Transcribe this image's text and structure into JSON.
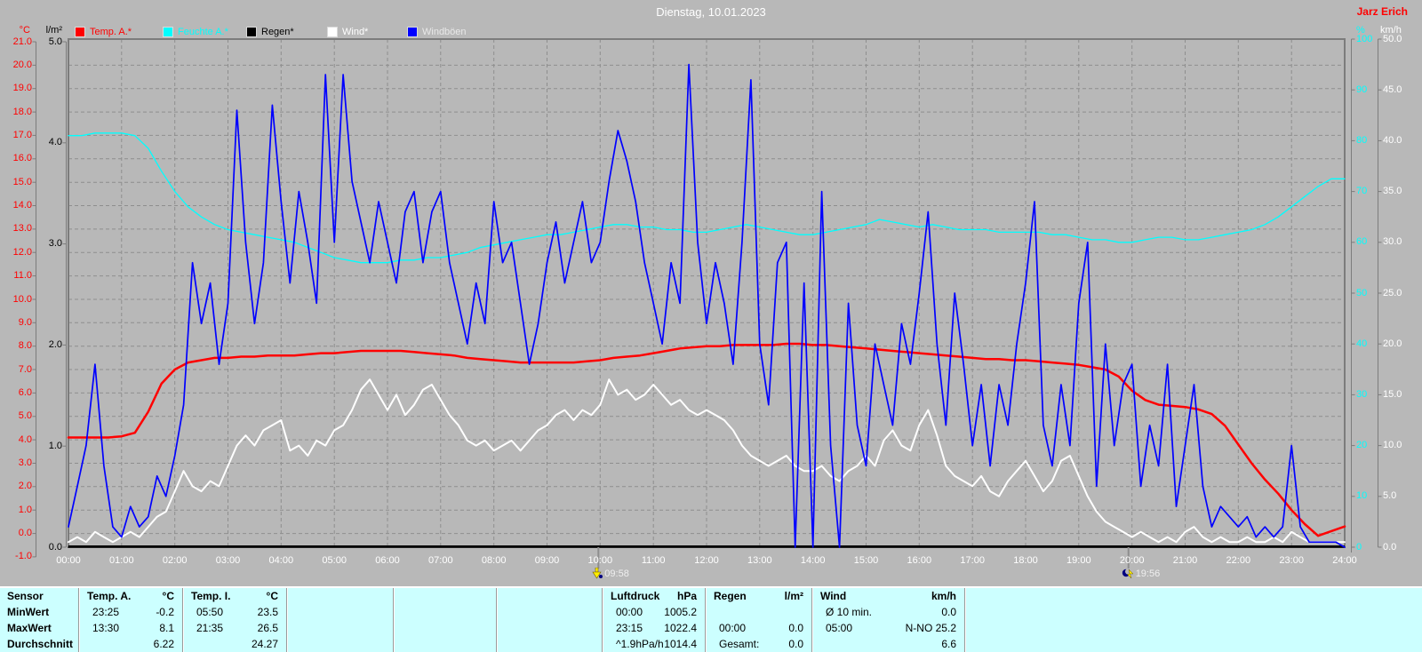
{
  "header": {
    "title": "Dienstag, 10.01.2023",
    "author": "Jarz Erich"
  },
  "legend": {
    "items": [
      {
        "label": "Temp. A.*",
        "color": "#ff0000",
        "text_color": "#ff0000"
      },
      {
        "label": "Feuchte A.*",
        "color": "#00ffff",
        "text_color": "#00ffff"
      },
      {
        "label": "Regen*",
        "color": "#000000",
        "text_color": "#000000"
      },
      {
        "label": "Wind*",
        "color": "#ffffff",
        "text_color": "#ffffff"
      },
      {
        "label": "Windböen",
        "color": "#0000ff",
        "text_color": "#e8e8e8"
      }
    ]
  },
  "axes": {
    "temp": {
      "unit": "°C",
      "color": "#ff0000",
      "max": 21,
      "min": -1,
      "step": 1
    },
    "rain": {
      "unit": "l/m²",
      "color": "#000000",
      "max": 5,
      "min": 0,
      "step": 1
    },
    "humidity": {
      "unit": "%",
      "color": "#00ffff",
      "max": 100,
      "min": 0,
      "step": 10
    },
    "wind": {
      "unit": "km/h",
      "color": "#ffffff",
      "max": 50,
      "min": 0,
      "step": 5
    }
  },
  "x_axis": {
    "first": "00:00",
    "last": "24:00",
    "hours": 24
  },
  "markers": [
    {
      "label": "09:58",
      "hour": 9.9667,
      "type": "sunrise"
    },
    {
      "label": "19:56",
      "hour": 19.9333,
      "type": "sunset"
    }
  ],
  "chart_data": {
    "type": "line",
    "title": "Dienstag, 10.01.2023",
    "x_range_hours": [
      0,
      24
    ],
    "grid": true,
    "series": [
      {
        "name": "Temp. A.",
        "color": "#ff0000",
        "axis": "temp",
        "interval_min": 15,
        "values": [
          4.1,
          4.1,
          4.1,
          4.1,
          4.15,
          4.3,
          5.2,
          6.4,
          7.0,
          7.3,
          7.4,
          7.5,
          7.5,
          7.55,
          7.55,
          7.6,
          7.6,
          7.6,
          7.65,
          7.7,
          7.7,
          7.75,
          7.8,
          7.8,
          7.8,
          7.8,
          7.75,
          7.7,
          7.65,
          7.6,
          7.5,
          7.45,
          7.4,
          7.35,
          7.3,
          7.3,
          7.3,
          7.3,
          7.3,
          7.35,
          7.4,
          7.5,
          7.55,
          7.6,
          7.7,
          7.8,
          7.9,
          7.95,
          8.0,
          8.0,
          8.05,
          8.05,
          8.05,
          8.05,
          8.1,
          8.1,
          8.05,
          8.05,
          8.0,
          7.95,
          7.9,
          7.85,
          7.8,
          7.75,
          7.7,
          7.65,
          7.6,
          7.55,
          7.5,
          7.45,
          7.45,
          7.4,
          7.4,
          7.35,
          7.3,
          7.25,
          7.2,
          7.1,
          7.0,
          6.7,
          6.1,
          5.7,
          5.5,
          5.45,
          5.4,
          5.3,
          5.1,
          4.6,
          3.8,
          3.0,
          2.3,
          1.7,
          1.0,
          0.4,
          -0.1,
          0.1,
          0.3
        ]
      },
      {
        "name": "Feuchte A.",
        "color": "#00ffff",
        "axis": "humidity",
        "interval_min": 15,
        "values": [
          81,
          81,
          81.5,
          81.5,
          81.5,
          81,
          78.5,
          74,
          70,
          67,
          65,
          63.5,
          62.5,
          62,
          61.5,
          61,
          60.5,
          60,
          59,
          58,
          57,
          56.5,
          56,
          56,
          56,
          56.5,
          56.5,
          57,
          57,
          57.5,
          58,
          59,
          59.5,
          60,
          60.5,
          61,
          61.5,
          61.5,
          62,
          62.5,
          63,
          63.5,
          63.5,
          63,
          63,
          62.5,
          62.5,
          62,
          62,
          62.5,
          63,
          63.5,
          63,
          62.5,
          62,
          61.5,
          61.5,
          62,
          62.5,
          63,
          63.5,
          64.5,
          64,
          63.5,
          63,
          63.5,
          63,
          62.5,
          62.5,
          62.5,
          62,
          62,
          62,
          62,
          61.5,
          61.5,
          61,
          60.5,
          60.5,
          60,
          60,
          60.5,
          61,
          61,
          60.5,
          60.5,
          61,
          61.5,
          62,
          62.5,
          63.5,
          65,
          67,
          69,
          71,
          72.5,
          72.5
        ]
      },
      {
        "name": "Regen",
        "color": "#000000",
        "axis": "rain",
        "interval_min": 60,
        "values": [
          0,
          0,
          0,
          0,
          0,
          0,
          0,
          0,
          0,
          0,
          0,
          0,
          0,
          0,
          0,
          0,
          0,
          0,
          0,
          0,
          0,
          0,
          0,
          0,
          0
        ]
      },
      {
        "name": "Wind",
        "color": "#ffffff",
        "axis": "wind",
        "interval_min": 10,
        "values": [
          0.5,
          1,
          0.5,
          1.5,
          1,
          0.5,
          1,
          1.5,
          1,
          2,
          3,
          3.5,
          5.5,
          7.5,
          6,
          5.5,
          6.5,
          6,
          8,
          10,
          11,
          10,
          11.5,
          12,
          12.5,
          9.5,
          10,
          9,
          10.5,
          10,
          11.5,
          12,
          13.5,
          15.5,
          16.5,
          15,
          13.5,
          15,
          13,
          14,
          15.5,
          16,
          14.5,
          13,
          12,
          10.5,
          10,
          10.5,
          9.5,
          10,
          10.5,
          9.5,
          10.5,
          11.5,
          12,
          13,
          13.5,
          12.5,
          13.5,
          13,
          14,
          16.5,
          15,
          15.5,
          14.5,
          15,
          16,
          15,
          14,
          14.5,
          13.5,
          13,
          13.5,
          13,
          12.5,
          11.5,
          10,
          9,
          8.5,
          8,
          8.5,
          9,
          8,
          7.5,
          7.5,
          8,
          7,
          6.5,
          7.5,
          8,
          9,
          8,
          10.5,
          11.5,
          10,
          9.5,
          12,
          13.5,
          11,
          8,
          7,
          6.5,
          6,
          7,
          5.5,
          5,
          6.5,
          7.5,
          8.5,
          7,
          5.5,
          6.5,
          8.5,
          9,
          7,
          5,
          3.5,
          2.5,
          2,
          1.5,
          1,
          1.5,
          1,
          0.5,
          1,
          0.5,
          1.5,
          2,
          1,
          0.5,
          1,
          0.5,
          0.5,
          1,
          0.5,
          0.5,
          1,
          0.5,
          1.5,
          1,
          0.5,
          0.5,
          0.5,
          0.5,
          0.5
        ]
      },
      {
        "name": "Windböen",
        "color": "#0000ff",
        "axis": "wind",
        "interval_min": 10,
        "values": [
          2,
          6,
          10,
          18,
          8,
          2,
          1,
          4,
          2,
          3,
          7,
          5,
          9,
          14,
          28,
          22,
          26,
          18,
          24,
          43,
          30,
          22,
          28,
          43.5,
          34,
          26,
          35,
          30,
          24,
          46.5,
          30,
          46.5,
          36,
          32,
          28,
          34,
          30,
          26,
          33,
          35,
          28,
          33,
          35,
          28,
          24,
          20,
          26,
          22,
          34,
          28,
          30,
          24,
          18,
          22,
          28,
          32,
          26,
          30,
          34,
          28,
          30,
          36,
          41,
          38,
          34,
          28,
          24,
          20,
          28,
          24,
          47.5,
          30,
          22,
          28,
          24,
          18,
          30,
          46,
          20,
          14,
          28,
          30,
          0,
          26,
          0,
          35,
          10,
          0,
          24,
          12,
          8,
          20,
          16,
          12,
          22,
          18,
          25,
          33,
          20,
          12,
          25,
          18,
          10,
          16,
          8,
          16,
          12,
          20,
          26,
          34,
          12,
          8,
          16,
          10,
          24,
          30,
          6,
          20,
          10,
          16,
          18,
          6,
          12,
          8,
          18,
          4,
          10,
          16,
          6,
          2,
          4,
          3,
          2,
          3,
          1,
          2,
          1,
          2,
          10,
          2,
          0.5,
          0.5,
          0.5,
          0.5,
          0
        ]
      }
    ]
  },
  "table": {
    "row_labels": [
      "Sensor",
      "MinWert",
      "MaxWert",
      "Durchschnitt"
    ],
    "columns": [
      {
        "title": "Temp. A.",
        "unit": "°C",
        "rows": [
          [
            "23:25",
            "-0.2"
          ],
          [
            "13:30",
            "8.1"
          ],
          [
            "",
            "6.22"
          ]
        ]
      },
      {
        "title": "Temp. I.",
        "unit": "°C",
        "rows": [
          [
            "05:50",
            "23.5"
          ],
          [
            "21:35",
            "26.5"
          ],
          [
            "",
            "24.27"
          ]
        ]
      },
      {
        "title": "",
        "unit": "",
        "rows": [
          [
            "",
            ""
          ],
          [
            "",
            ""
          ],
          [
            "",
            ""
          ]
        ]
      },
      {
        "title": "",
        "unit": "",
        "rows": [
          [
            "",
            ""
          ],
          [
            "",
            ""
          ],
          [
            "",
            ""
          ]
        ]
      },
      {
        "title": "",
        "unit": "",
        "rows": [
          [
            "",
            ""
          ],
          [
            "",
            ""
          ],
          [
            "",
            ""
          ]
        ]
      },
      {
        "title": "Luftdruck",
        "unit": "hPa",
        "rows": [
          [
            "00:00",
            "1005.2"
          ],
          [
            "23:15",
            "1022.4"
          ],
          [
            "^1.9hPa/h",
            "1014.4"
          ]
        ]
      },
      {
        "title": "Regen",
        "unit": "l/m²",
        "rows": [
          [
            "",
            ""
          ],
          [
            "00:00",
            "0.0"
          ],
          [
            "Gesamt:",
            "0.0"
          ]
        ]
      },
      {
        "title": "Wind",
        "unit": "km/h",
        "rows": [
          [
            "Ø 10 min.",
            "0.0"
          ],
          [
            "05:00",
            "N-NO 25.2"
          ],
          [
            "",
            "6.6"
          ]
        ]
      },
      {
        "title": "",
        "unit": "",
        "rows": [
          [
            "",
            ""
          ],
          [
            "",
            ""
          ],
          [
            "",
            ""
          ]
        ]
      }
    ]
  },
  "colors": {
    "background": "#b8b8b8",
    "grid": "#8e8e8e",
    "border": "#7c7c7c",
    "table_background": "#ccffff",
    "marker_yellow": "#ffee00",
    "marker_navy": "#000080"
  }
}
